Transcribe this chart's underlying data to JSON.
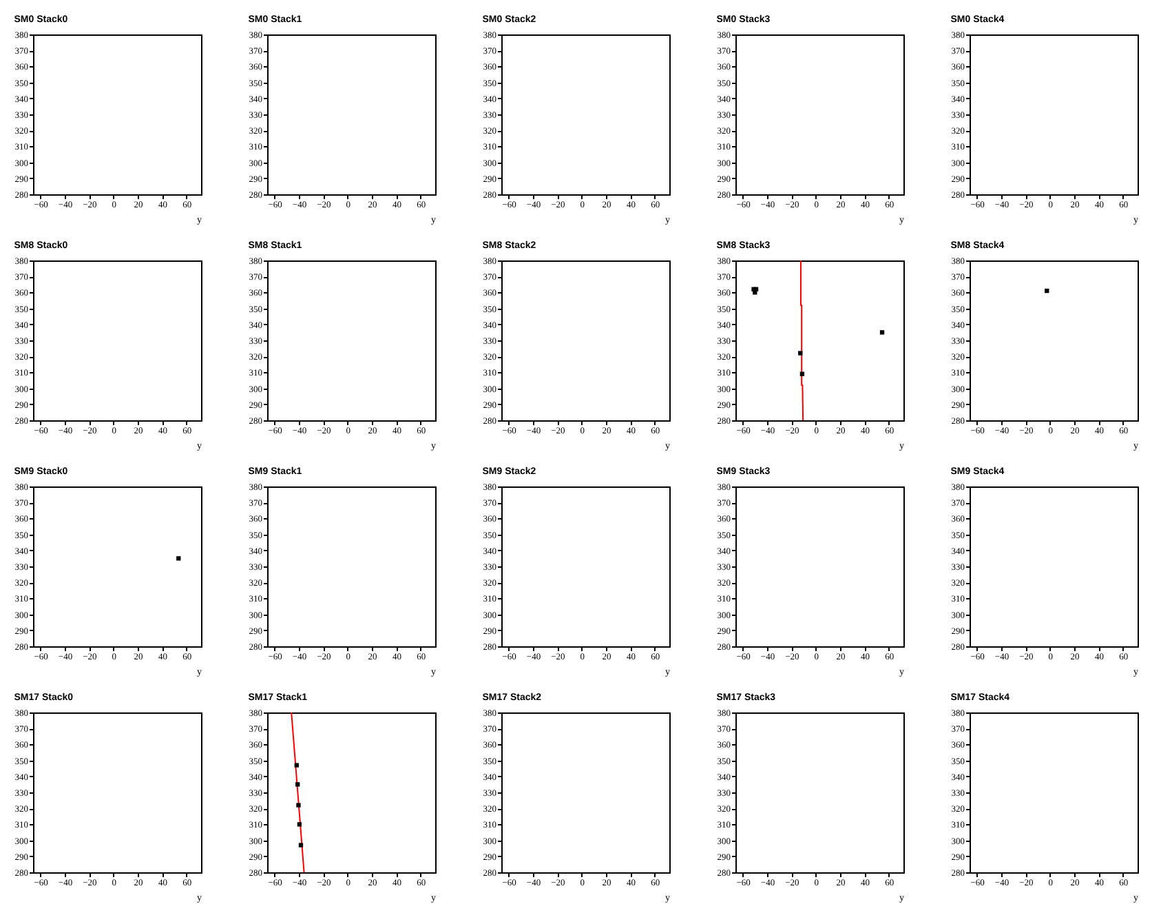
{
  "chart_data": [
    {
      "type": "scatter",
      "title": "SM0 Stack0",
      "xlabel": "y",
      "xlim": [
        -66,
        72
      ],
      "ylim": [
        280,
        380
      ],
      "xticks": [
        -60,
        -40,
        -20,
        0,
        20,
        40,
        60
      ],
      "yticks": [
        280,
        290,
        300,
        310,
        320,
        330,
        340,
        350,
        360,
        370,
        380
      ],
      "grid": false
    },
    {
      "type": "scatter",
      "title": "SM0 Stack1",
      "xlabel": "y",
      "xlim": [
        -66,
        72
      ],
      "ylim": [
        280,
        380
      ],
      "xticks": [
        -60,
        -40,
        -20,
        0,
        20,
        40,
        60
      ],
      "yticks": [
        280,
        290,
        300,
        310,
        320,
        330,
        340,
        350,
        360,
        370,
        380
      ],
      "grid": false
    },
    {
      "type": "scatter",
      "title": "SM0 Stack2",
      "xlabel": "y",
      "xlim": [
        -66,
        72
      ],
      "ylim": [
        280,
        380
      ],
      "xticks": [
        -60,
        -40,
        -20,
        0,
        20,
        40,
        60
      ],
      "yticks": [
        280,
        290,
        300,
        310,
        320,
        330,
        340,
        350,
        360,
        370,
        380
      ],
      "grid": false
    },
    {
      "type": "scatter",
      "title": "SM0 Stack3",
      "xlabel": "y",
      "xlim": [
        -66,
        72
      ],
      "ylim": [
        280,
        380
      ],
      "xticks": [
        -60,
        -40,
        -20,
        0,
        20,
        40,
        60
      ],
      "yticks": [
        280,
        290,
        300,
        310,
        320,
        330,
        340,
        350,
        360,
        370,
        380
      ],
      "grid": false
    },
    {
      "type": "scatter",
      "title": "SM0 Stack4",
      "xlabel": "y",
      "xlim": [
        -66,
        72
      ],
      "ylim": [
        280,
        380
      ],
      "xticks": [
        -60,
        -40,
        -20,
        0,
        20,
        40,
        60
      ],
      "yticks": [
        280,
        290,
        300,
        310,
        320,
        330,
        340,
        350,
        360,
        370,
        380
      ],
      "grid": false
    },
    {
      "type": "scatter",
      "title": "SM8 Stack0",
      "xlabel": "y",
      "xlim": [
        -66,
        72
      ],
      "ylim": [
        280,
        380
      ],
      "xticks": [
        -60,
        -40,
        -20,
        0,
        20,
        40,
        60
      ],
      "yticks": [
        280,
        290,
        300,
        310,
        320,
        330,
        340,
        350,
        360,
        370,
        380
      ],
      "grid": false
    },
    {
      "type": "scatter",
      "title": "SM8 Stack1",
      "xlabel": "y",
      "xlim": [
        -66,
        72
      ],
      "ylim": [
        280,
        380
      ],
      "xticks": [
        -60,
        -40,
        -20,
        0,
        20,
        40,
        60
      ],
      "yticks": [
        280,
        290,
        300,
        310,
        320,
        330,
        340,
        350,
        360,
        370,
        380
      ],
      "grid": false
    },
    {
      "type": "scatter",
      "title": "SM8 Stack2",
      "xlabel": "y",
      "xlim": [
        -66,
        72
      ],
      "ylim": [
        280,
        380
      ],
      "xticks": [
        -60,
        -40,
        -20,
        0,
        20,
        40,
        60
      ],
      "yticks": [
        280,
        290,
        300,
        310,
        320,
        330,
        340,
        350,
        360,
        370,
        380
      ],
      "grid": false
    },
    {
      "type": "scatter",
      "title": "SM8 Stack3",
      "xlabel": "y",
      "xlim": [
        -66,
        72
      ],
      "ylim": [
        280,
        380
      ],
      "xticks": [
        -60,
        -40,
        -20,
        0,
        20,
        40,
        60
      ],
      "yticks": [
        280,
        290,
        300,
        310,
        320,
        330,
        340,
        350,
        360,
        370,
        380
      ],
      "grid": false,
      "series": [
        {
          "type": "line",
          "marker": "none",
          "color": "#ff0000",
          "x": [
            -12.3,
            -12.3,
            -11.6,
            -11.6,
            -10.9,
            -10.5
          ],
          "values": [
            380,
            352,
            352,
            302,
            302,
            280
          ]
        },
        {
          "type": "scatter",
          "marker": "square",
          "color": "#000000",
          "x": [
            -51,
            -49,
            -50,
            54.5,
            -12.7,
            -11.2
          ],
          "values": [
            362,
            362,
            360,
            335,
            322,
            309
          ]
        }
      ]
    },
    {
      "type": "scatter",
      "title": "SM8 Stack4",
      "xlabel": "y",
      "xlim": [
        -66,
        72
      ],
      "ylim": [
        280,
        380
      ],
      "xticks": [
        -60,
        -40,
        -20,
        0,
        20,
        40,
        60
      ],
      "yticks": [
        280,
        290,
        300,
        310,
        320,
        330,
        340,
        350,
        360,
        370,
        380
      ],
      "grid": false,
      "series": [
        {
          "type": "scatter",
          "marker": "square",
          "color": "#000000",
          "x": [
            -2.5
          ],
          "values": [
            361
          ]
        }
      ]
    },
    {
      "type": "scatter",
      "title": "SM9 Stack0",
      "xlabel": "y",
      "xlim": [
        -66,
        72
      ],
      "ylim": [
        280,
        380
      ],
      "xticks": [
        -60,
        -40,
        -20,
        0,
        20,
        40,
        60
      ],
      "yticks": [
        280,
        290,
        300,
        310,
        320,
        330,
        340,
        350,
        360,
        370,
        380
      ],
      "grid": false,
      "series": [
        {
          "type": "scatter",
          "marker": "square",
          "color": "#000000",
          "x": [
            53.5
          ],
          "values": [
            335
          ]
        }
      ]
    },
    {
      "type": "scatter",
      "title": "SM9 Stack1",
      "xlabel": "y",
      "xlim": [
        -66,
        72
      ],
      "ylim": [
        280,
        380
      ],
      "xticks": [
        -60,
        -40,
        -20,
        0,
        20,
        40,
        60
      ],
      "yticks": [
        280,
        290,
        300,
        310,
        320,
        330,
        340,
        350,
        360,
        370,
        380
      ],
      "grid": false
    },
    {
      "type": "scatter",
      "title": "SM9 Stack2",
      "xlabel": "y",
      "xlim": [
        -66,
        72
      ],
      "ylim": [
        280,
        380
      ],
      "xticks": [
        -60,
        -40,
        -20,
        0,
        20,
        40,
        60
      ],
      "yticks": [
        280,
        290,
        300,
        310,
        320,
        330,
        340,
        350,
        360,
        370,
        380
      ],
      "grid": false
    },
    {
      "type": "scatter",
      "title": "SM9 Stack3",
      "xlabel": "y",
      "xlim": [
        -66,
        72
      ],
      "ylim": [
        280,
        380
      ],
      "xticks": [
        -60,
        -40,
        -20,
        0,
        20,
        40,
        60
      ],
      "yticks": [
        280,
        290,
        300,
        310,
        320,
        330,
        340,
        350,
        360,
        370,
        380
      ],
      "grid": false
    },
    {
      "type": "scatter",
      "title": "SM9 Stack4",
      "xlabel": "y",
      "xlim": [
        -66,
        72
      ],
      "ylim": [
        280,
        380
      ],
      "xticks": [
        -60,
        -40,
        -20,
        0,
        20,
        40,
        60
      ],
      "yticks": [
        280,
        290,
        300,
        310,
        320,
        330,
        340,
        350,
        360,
        370,
        380
      ],
      "grid": false
    },
    {
      "type": "scatter",
      "title": "SM17 Stack0",
      "xlabel": "y",
      "xlim": [
        -66,
        72
      ],
      "ylim": [
        280,
        380
      ],
      "xticks": [
        -60,
        -40,
        -20,
        0,
        20,
        40,
        60
      ],
      "yticks": [
        280,
        290,
        300,
        310,
        320,
        330,
        340,
        350,
        360,
        370,
        380
      ],
      "grid": false
    },
    {
      "type": "scatter",
      "title": "SM17 Stack1",
      "xlabel": "y",
      "xlim": [
        -66,
        72
      ],
      "ylim": [
        280,
        380
      ],
      "xticks": [
        -60,
        -40,
        -20,
        0,
        20,
        40,
        60
      ],
      "yticks": [
        280,
        290,
        300,
        310,
        320,
        330,
        340,
        350,
        360,
        370,
        380
      ],
      "grid": false,
      "series": [
        {
          "type": "line",
          "marker": "none",
          "color": "#ff0000",
          "x": [
            -46.1,
            -35.7
          ],
          "values": [
            380,
            280
          ]
        },
        {
          "type": "scatter",
          "marker": "square",
          "color": "#000000",
          "x": [
            -41.8,
            -41,
            -40.3,
            -39.5,
            -38.3
          ],
          "values": [
            347,
            335,
            322,
            310,
            297
          ]
        }
      ]
    },
    {
      "type": "scatter",
      "title": "SM17 Stack2",
      "xlabel": "y",
      "xlim": [
        -66,
        72
      ],
      "ylim": [
        280,
        380
      ],
      "xticks": [
        -60,
        -40,
        -20,
        0,
        20,
        40,
        60
      ],
      "yticks": [
        280,
        290,
        300,
        310,
        320,
        330,
        340,
        350,
        360,
        370,
        380
      ],
      "grid": false
    },
    {
      "type": "scatter",
      "title": "SM17 Stack3",
      "xlabel": "y",
      "xlim": [
        -66,
        72
      ],
      "ylim": [
        280,
        380
      ],
      "xticks": [
        -60,
        -40,
        -20,
        0,
        20,
        40,
        60
      ],
      "yticks": [
        280,
        290,
        300,
        310,
        320,
        330,
        340,
        350,
        360,
        370,
        380
      ],
      "grid": false
    },
    {
      "type": "scatter",
      "title": "SM17 Stack4",
      "xlabel": "y",
      "xlim": [
        -66,
        72
      ],
      "ylim": [
        280,
        380
      ],
      "xticks": [
        -60,
        -40,
        -20,
        0,
        20,
        40,
        60
      ],
      "yticks": [
        280,
        290,
        300,
        310,
        320,
        330,
        340,
        350,
        360,
        370,
        380
      ],
      "grid": false
    }
  ]
}
